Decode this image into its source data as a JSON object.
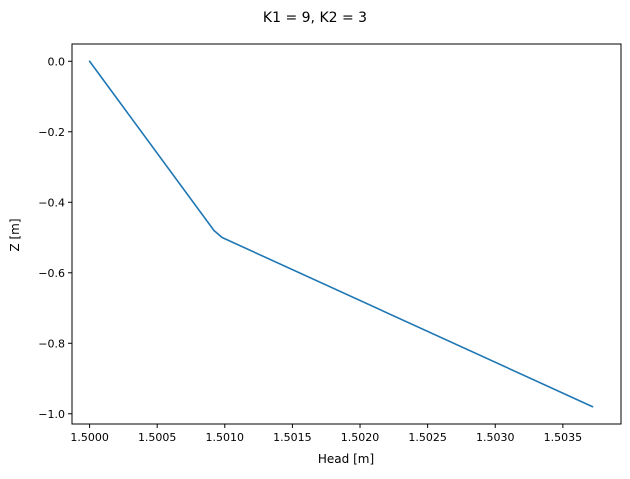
{
  "chart_data": {
    "type": "line",
    "title": "K1 = 9, K2 = 3",
    "xlabel": "Head [m]",
    "ylabel": "Z [m]",
    "xlim": [
      1.49987,
      1.50393
    ],
    "ylim": [
      -1.029,
      0.049
    ],
    "xticks": [
      1.5,
      1.5005,
      1.501,
      1.5015,
      1.502,
      1.5025,
      1.503,
      1.5035
    ],
    "xtick_labels": [
      "1.5000",
      "1.5005",
      "1.5010",
      "1.5015",
      "1.5020",
      "1.5025",
      "1.5030",
      "1.5035"
    ],
    "yticks": [
      0.0,
      -0.2,
      -0.4,
      -0.6,
      -0.8,
      -1.0
    ],
    "ytick_labels": [
      "0.0",
      "−0.2",
      "−0.4",
      "−0.6",
      "−0.8",
      "−1.0"
    ],
    "grid": false,
    "series": [
      {
        "color": "#1f77b4",
        "x": [
          1.5,
          1.50092,
          1.50098,
          1.50372
        ],
        "y": [
          0.0,
          -0.48,
          -0.5,
          -0.98
        ]
      }
    ]
  }
}
